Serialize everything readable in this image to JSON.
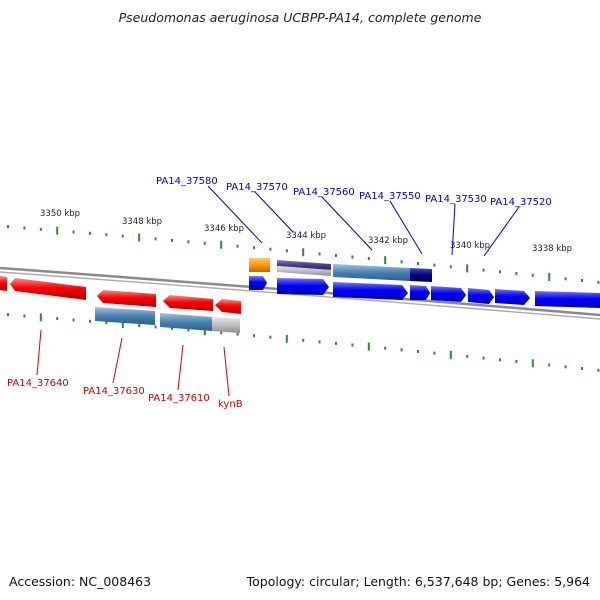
{
  "title": "Pseudomonas aeruginosa UCBPP-PA14, complete genome",
  "footer": {
    "accession": "Accession: NC_008463",
    "summary": "Topology: circular; Length: 6,537,648 bp; Genes: 5,964"
  },
  "scale_labels": [
    "3350 kbp",
    "3348 kbp",
    "3346 kbp",
    "3344 kbp",
    "3342 kbp",
    "3340 kbp",
    "3338 kbp"
  ],
  "top_labels": [
    "PA14_37580",
    "PA14_37570",
    "PA14_37560",
    "PA14_37550",
    "PA14_37530",
    "PA14_37520"
  ],
  "bottom_labels": [
    "PA14_37640",
    "PA14_37630",
    "PA14_37610",
    "kynB"
  ],
  "colors": {
    "forward_gene": "#0000ff",
    "reverse_gene": "#ff0000",
    "top_label": "#0000cc",
    "bottom_label": "#cc0000",
    "tick": "#2d8a2d",
    "backbone": "#888888",
    "feature_blue": "#4682b4",
    "feature_purple": "#483d8b",
    "feature_navy": "#000080",
    "feature_orange": "#ff9900",
    "feature_grey": "#b3b3b3"
  }
}
